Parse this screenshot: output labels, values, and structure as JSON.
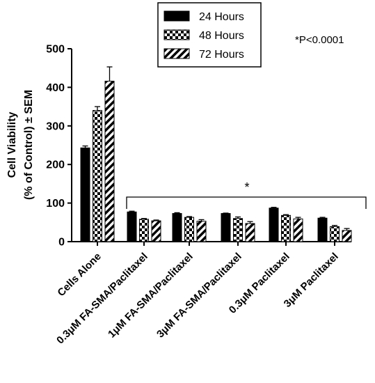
{
  "chart_data": {
    "type": "bar",
    "title": "",
    "xlabel": "",
    "ylabel_line1": "Cell Viability",
    "ylabel_line2": "(% of Control) ± SEM",
    "ylim": [
      0,
      500
    ],
    "yticks": [
      0,
      100,
      200,
      300,
      400,
      500
    ],
    "categories": [
      "Cells Alone",
      "0.3μM FA-SMA/Paclitaxel",
      "1μM FA-SMA/Paclitaxel",
      "3μM FA-SMA/Paclitaxel",
      "0.3μM Paclitaxel",
      "3μM Paclitaxel"
    ],
    "series": [
      {
        "name": "24 Hours",
        "pattern": "solid",
        "values": [
          243,
          77,
          73,
          73,
          87,
          61
        ],
        "errors": [
          5,
          2,
          2,
          1,
          2,
          2
        ]
      },
      {
        "name": "48 Hours",
        "pattern": "checker",
        "values": [
          340,
          58,
          63,
          60,
          68,
          39
        ],
        "errors": [
          10,
          2,
          2,
          4,
          2,
          3
        ]
      },
      {
        "name": "72 Hours",
        "pattern": "diagonal",
        "values": [
          416,
          54,
          53,
          47,
          59,
          29
        ],
        "errors": [
          37,
          2,
          4,
          5,
          4,
          5
        ]
      }
    ],
    "legend_position": "top-center",
    "grid": false,
    "annotation": "*P<0.0001",
    "bracket_label": "*",
    "colors": {
      "bar": "#000000",
      "background": "#ffffff"
    }
  }
}
